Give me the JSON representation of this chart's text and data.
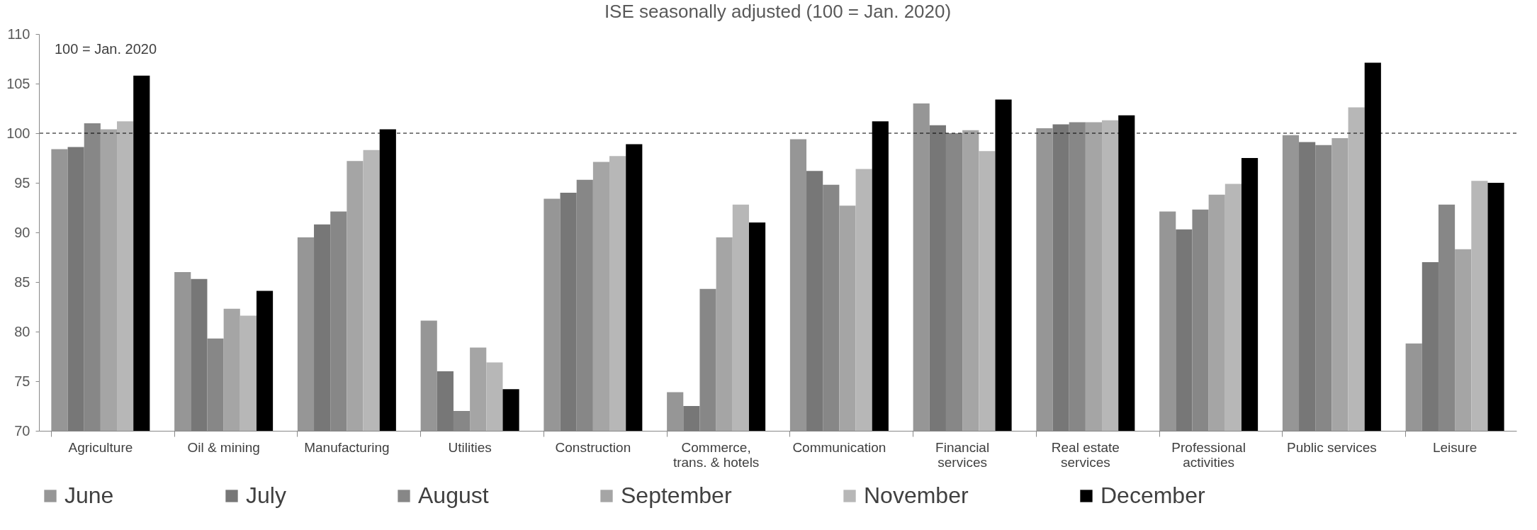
{
  "chart_data": {
    "type": "bar",
    "title": "ISE seasonally adjusted (100 = Jan. 2020)",
    "categories": [
      "Agriculture",
      "Oil & mining",
      "Manufacturing",
      "Utilities",
      "Construction",
      "Commerce, trans. & hotels",
      "Communication",
      "Financial services",
      "Real estate services",
      "Professional activities",
      "Public services",
      "Leisure"
    ],
    "series": [
      {
        "name": "June",
        "color": "#969696",
        "values": [
          98.4,
          86.0,
          89.5,
          81.1,
          93.4,
          73.9,
          99.4,
          103.0,
          100.5,
          92.1,
          99.8,
          78.8
        ]
      },
      {
        "name": "July",
        "color": "#777777",
        "values": [
          98.6,
          85.3,
          90.8,
          76.0,
          94.0,
          72.5,
          96.2,
          100.8,
          100.9,
          90.3,
          99.1,
          87.0
        ]
      },
      {
        "name": "August",
        "color": "#878787",
        "values": [
          101.0,
          79.3,
          92.1,
          72.0,
          95.3,
          84.3,
          94.8,
          100.0,
          101.1,
          92.3,
          98.8,
          92.8
        ]
      },
      {
        "name": "September",
        "color": "#a5a5a5",
        "values": [
          100.4,
          82.3,
          97.2,
          78.4,
          97.1,
          89.5,
          92.7,
          100.3,
          101.1,
          93.8,
          99.5,
          88.3
        ]
      },
      {
        "name": "November",
        "color": "#b7b7b7",
        "values": [
          101.2,
          81.6,
          98.3,
          76.9,
          97.7,
          92.8,
          96.4,
          98.2,
          101.3,
          94.9,
          102.6,
          95.2
        ]
      },
      {
        "name": "December",
        "color": "#000000",
        "values": [
          105.8,
          84.1,
          100.4,
          74.2,
          98.9,
          91.0,
          101.2,
          103.4,
          101.8,
          97.5,
          107.1,
          95.0
        ]
      }
    ],
    "ylim": [
      70,
      110
    ],
    "yticks": [
      70,
      75,
      80,
      85,
      90,
      95,
      100,
      105,
      110
    ],
    "ref_lines": [
      {
        "axis": "y",
        "value": 100,
        "line_style": "dashed",
        "color": "#000000"
      }
    ],
    "annotations": [
      "100 = Jan. 2020"
    ],
    "legend": "bottom",
    "grid": false
  }
}
